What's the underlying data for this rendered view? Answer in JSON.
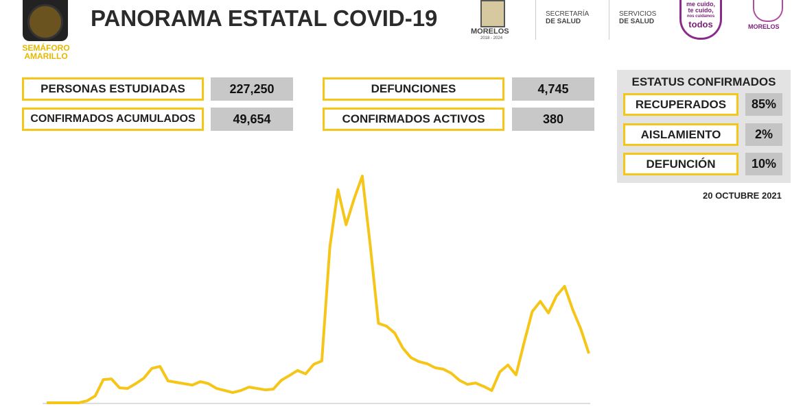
{
  "header": {
    "title": "PANORAMA ESTATAL COVID-19",
    "semaforo": [
      "SEMÁFORO",
      "AMARILLO"
    ],
    "logo_morelos": "MORELOS",
    "logo_years": "2018 - 2024",
    "secretaria": [
      "SECRETARÍA",
      "DE SALUD"
    ],
    "servicios": [
      "SERVICIOS",
      "DE SALUD"
    ],
    "slogan": [
      "me cuido,",
      "te cuido,",
      "nos cuidamos",
      "todos"
    ],
    "logo_morelos2": "MORELOS"
  },
  "stats": [
    {
      "label": "PERSONAS ESTUDIADAS",
      "value": "227,250"
    },
    {
      "label": "CONFIRMADOS ACUMULADOS",
      "value": "49,654"
    },
    {
      "label": "DEFUNCIONES",
      "value": "4,745"
    },
    {
      "label": "CONFIRMADOS ACTIVOS",
      "value": "380"
    }
  ],
  "status": {
    "title": "ESTATUS CONFIRMADOS",
    "items": [
      {
        "label": "RECUPERADOS",
        "value": "85%"
      },
      {
        "label": "AISLAMIENTO",
        "value": "2%"
      },
      {
        "label": "DEFUNCIÓN",
        "value": "10%"
      }
    ]
  },
  "date": "20 OCTUBRE 2021",
  "chart_data": {
    "type": "line",
    "color": "#f5c518",
    "ylim": [
      0,
      100
    ],
    "values": [
      0,
      0,
      0,
      0,
      0,
      0.9,
      3.0,
      10.2,
      10.5,
      6.6,
      6.3,
      8.4,
      10.8,
      15.1,
      16.0,
      9.6,
      9.0,
      8.4,
      7.8,
      9.3,
      8.4,
      6.3,
      5.4,
      4.5,
      5.4,
      6.9,
      6.3,
      5.7,
      6.0,
      9.9,
      12.0,
      14.2,
      12.7,
      16.9,
      18.4,
      68.7,
      93.7,
      78.3,
      89.8,
      99.7,
      68.7,
      34.9,
      33.7,
      30.7,
      24.1,
      19.9,
      18.1,
      17.2,
      15.4,
      14.8,
      13.0,
      9.9,
      8.1,
      8.7,
      7.2,
      5.4,
      13.6,
      16.6,
      12.3,
      26.5,
      40.1,
      44.6,
      39.5,
      47.0,
      51.2,
      41.0,
      32.5,
      21.7
    ]
  }
}
